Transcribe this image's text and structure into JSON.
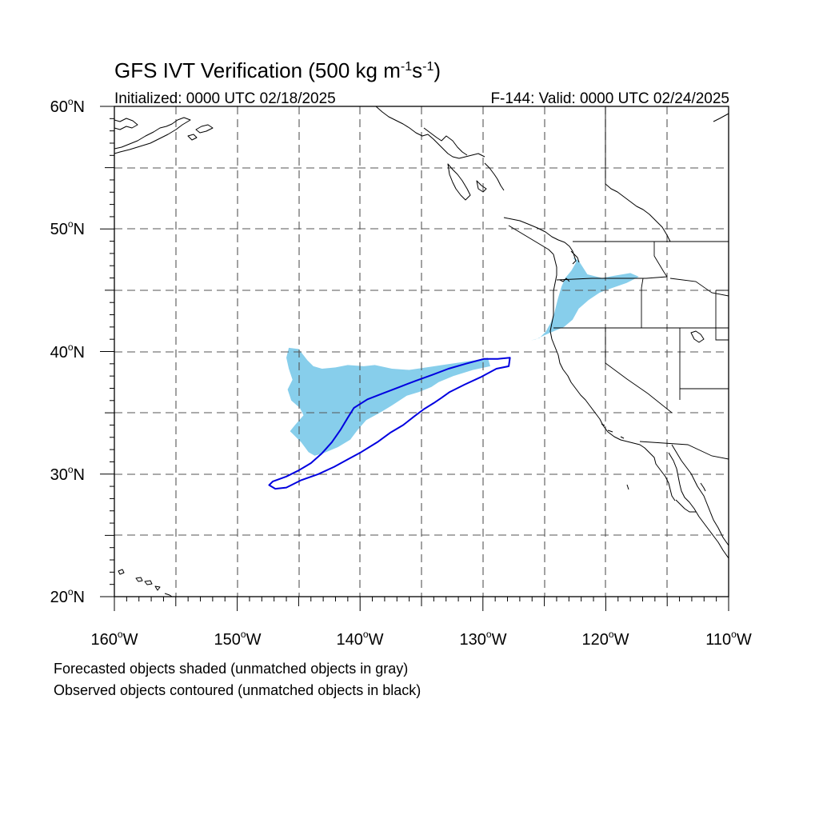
{
  "title": {
    "main": "GFS IVT Verification (500 kg m",
    "sup1": "-1",
    "mid": "s",
    "sup2": "-1",
    "end": ")"
  },
  "subtitle": {
    "left": "Initialized: 0000 UTC 02/18/2025",
    "right": "F-144: Valid: 0000 UTC 02/24/2025"
  },
  "axes": {
    "lon_labels": [
      "160",
      "150",
      "140",
      "130",
      "120",
      "110"
    ],
    "lon_suffix": "W",
    "lat_labels": [
      "60",
      "50",
      "40",
      "30",
      "20"
    ],
    "lat_suffix": "N",
    "lon_range": [
      -160,
      -110
    ],
    "lat_range": [
      20,
      60
    ],
    "grid": true
  },
  "footnotes": {
    "line1": "Forecasted objects shaded (unmatched objects in gray)",
    "line2": "Observed objects contoured (unmatched objects in black)"
  },
  "colors": {
    "forecast_shading": "#87ceeb",
    "observed_contour": "#0000e0"
  },
  "chart_data": {
    "type": "map",
    "projection": "cylindrical",
    "forecast_objects": [
      {
        "region": "central-north-pacific",
        "outline_lonlat": [
          [
            -145.8,
            40.3
          ],
          [
            -145.0,
            40.2
          ],
          [
            -144.3,
            39.3
          ],
          [
            -143.8,
            38.8
          ],
          [
            -143.1,
            38.6
          ],
          [
            -142.0,
            38.7
          ],
          [
            -141.0,
            38.9
          ],
          [
            -139.7,
            38.8
          ],
          [
            -138.8,
            38.9
          ],
          [
            -137.4,
            38.6
          ],
          [
            -136.0,
            38.5
          ],
          [
            -134.6,
            38.7
          ],
          [
            -133.3,
            38.9
          ],
          [
            -131.9,
            39.1
          ],
          [
            -130.6,
            39.3
          ],
          [
            -129.6,
            39.5
          ],
          [
            -129.4,
            38.8
          ],
          [
            -130.8,
            38.5
          ],
          [
            -132.4,
            38.0
          ],
          [
            -133.6,
            37.5
          ],
          [
            -134.2,
            37.1
          ],
          [
            -135.2,
            36.7
          ],
          [
            -136.2,
            36.4
          ],
          [
            -137.4,
            35.6
          ],
          [
            -138.4,
            35.0
          ],
          [
            -139.5,
            34.4
          ],
          [
            -140.2,
            33.6
          ],
          [
            -140.8,
            32.8
          ],
          [
            -141.8,
            32.2
          ],
          [
            -143.0,
            31.7
          ],
          [
            -143.7,
            31.5
          ],
          [
            -144.2,
            31.8
          ],
          [
            -144.8,
            32.6
          ],
          [
            -145.7,
            33.5
          ],
          [
            -145.3,
            34.0
          ],
          [
            -144.6,
            34.8
          ],
          [
            -144.9,
            35.4
          ],
          [
            -145.6,
            36.0
          ],
          [
            -145.9,
            36.9
          ],
          [
            -145.5,
            37.7
          ],
          [
            -145.8,
            38.6
          ],
          [
            -146.0,
            39.5
          ]
        ]
      },
      {
        "region": "pacific-northwest-coast",
        "outline_lonlat": [
          [
            -126.1,
            40.9
          ],
          [
            -125.4,
            41.1
          ],
          [
            -124.9,
            41.6
          ],
          [
            -124.5,
            42.3
          ],
          [
            -124.2,
            43.1
          ],
          [
            -123.9,
            44.3
          ],
          [
            -123.6,
            45.3
          ],
          [
            -123.3,
            46.0
          ],
          [
            -122.8,
            46.6
          ],
          [
            -122.4,
            47.3
          ],
          [
            -122.7,
            47.7
          ],
          [
            -122.2,
            47.4
          ],
          [
            -121.5,
            46.3
          ],
          [
            -120.3,
            46.0
          ],
          [
            -119.2,
            46.2
          ],
          [
            -118.0,
            46.4
          ],
          [
            -117.3,
            46.1
          ],
          [
            -118.3,
            45.6
          ],
          [
            -119.7,
            45.1
          ],
          [
            -120.5,
            44.8
          ],
          [
            -121.4,
            44.2
          ],
          [
            -122.2,
            43.5
          ],
          [
            -122.7,
            42.6
          ],
          [
            -123.4,
            42.0
          ],
          [
            -124.6,
            41.5
          ],
          [
            -125.7,
            41.0
          ]
        ]
      }
    ],
    "observed_objects": [
      {
        "region": "central-north-pacific",
        "outline_lonlat": [
          [
            -147.1,
            29.4
          ],
          [
            -146.0,
            29.8
          ],
          [
            -145.0,
            30.3
          ],
          [
            -144.0,
            30.9
          ],
          [
            -143.1,
            31.7
          ],
          [
            -142.3,
            32.6
          ],
          [
            -141.6,
            33.6
          ],
          [
            -141.0,
            34.6
          ],
          [
            -140.5,
            35.4
          ],
          [
            -139.4,
            36.1
          ],
          [
            -138.1,
            36.6
          ],
          [
            -136.8,
            37.1
          ],
          [
            -135.5,
            37.6
          ],
          [
            -134.1,
            38.1
          ],
          [
            -132.8,
            38.6
          ],
          [
            -131.4,
            39.0
          ],
          [
            -129.9,
            39.4
          ],
          [
            -128.8,
            39.4
          ],
          [
            -127.8,
            39.5
          ],
          [
            -127.9,
            38.8
          ],
          [
            -128.9,
            38.6
          ],
          [
            -130.2,
            37.9
          ],
          [
            -131.5,
            37.3
          ],
          [
            -132.7,
            36.7
          ],
          [
            -133.4,
            36.2
          ],
          [
            -134.0,
            35.8
          ],
          [
            -134.8,
            35.3
          ],
          [
            -135.6,
            34.7
          ],
          [
            -136.5,
            34.0
          ],
          [
            -137.5,
            33.4
          ],
          [
            -138.6,
            32.6
          ],
          [
            -139.9,
            31.8
          ],
          [
            -141.0,
            31.2
          ],
          [
            -142.1,
            30.6
          ],
          [
            -143.4,
            30.0
          ],
          [
            -144.8,
            29.5
          ],
          [
            -146.0,
            28.9
          ],
          [
            -146.9,
            28.8
          ],
          [
            -147.4,
            29.1
          ]
        ]
      }
    ]
  }
}
